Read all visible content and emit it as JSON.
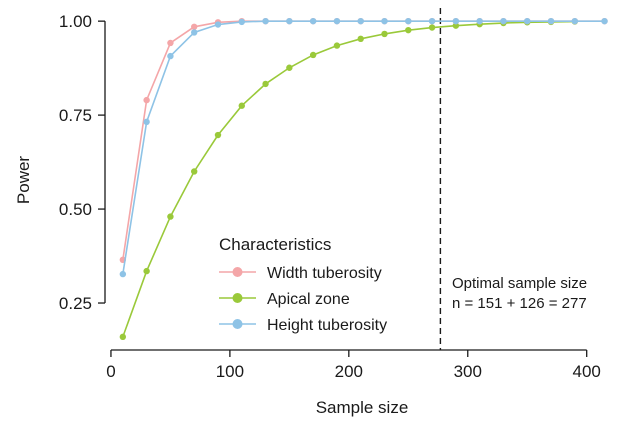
{
  "chart_data": {
    "type": "line",
    "xlabel": "Sample size",
    "ylabel": "Power",
    "xlim": [
      -5,
      428
    ],
    "ylim": [
      0.125,
      1.035
    ],
    "xticks": [
      0,
      100,
      200,
      300,
      400
    ],
    "yticks": [
      0.25,
      0.5,
      0.75,
      1.0
    ],
    "x_tick_labels": [
      "0",
      "100",
      "200",
      "300",
      "400"
    ],
    "y_tick_labels": [
      "0.25",
      "0.50",
      "0.75",
      "1.00"
    ],
    "grid": false,
    "legend": {
      "title": "Characteristics",
      "placement": "bottom-center"
    },
    "x": [
      10,
      30,
      50,
      70,
      90,
      110,
      130,
      150,
      170,
      190,
      210,
      230,
      250,
      270,
      290,
      310,
      330,
      350,
      370,
      390,
      415
    ],
    "series": [
      {
        "name": "Width tuberosity",
        "color": "#f4a6a8",
        "x": [
          10,
          30,
          50,
          70,
          90,
          110,
          130,
          150,
          170,
          190,
          210,
          230,
          250,
          270,
          290,
          310,
          330,
          350,
          370,
          390,
          415
        ],
        "values": [
          0.365,
          0.79,
          0.942,
          0.985,
          0.997,
          1.0,
          1.0,
          1.0,
          1.0,
          1.0,
          1.0,
          1.0,
          1.0,
          1.0,
          1.0,
          1.0,
          1.0,
          1.0,
          1.0,
          1.0,
          1.0
        ]
      },
      {
        "name": "Apical zone",
        "color": "#9ac93a",
        "x": [
          10,
          30,
          50,
          70,
          90,
          110,
          130,
          150,
          170,
          190,
          210,
          230,
          250,
          270,
          290,
          310,
          330,
          350,
          370,
          390
        ],
        "values": [
          0.16,
          0.335,
          0.48,
          0.6,
          0.697,
          0.775,
          0.833,
          0.876,
          0.91,
          0.935,
          0.953,
          0.966,
          0.976,
          0.983,
          0.988,
          0.992,
          0.995,
          0.997,
          0.998,
          0.999
        ]
      },
      {
        "name": "Height tuberosity",
        "color": "#8ec3e6",
        "x": [
          10,
          30,
          50,
          70,
          90,
          110,
          130,
          150,
          170,
          190,
          210,
          230,
          250,
          270,
          290,
          310,
          330,
          350,
          370,
          390,
          415
        ],
        "values": [
          0.327,
          0.732,
          0.907,
          0.97,
          0.991,
          0.998,
          1.0,
          1.0,
          1.0,
          1.0,
          1.0,
          1.0,
          1.0,
          1.0,
          1.0,
          1.0,
          1.0,
          1.0,
          1.0,
          1.0,
          1.0
        ]
      }
    ],
    "reference_line": {
      "x": 277,
      "style": "dashed"
    },
    "annotation": {
      "lines": [
        "Optimal sample size",
        "n = 151 + 126 = 277"
      ]
    }
  }
}
